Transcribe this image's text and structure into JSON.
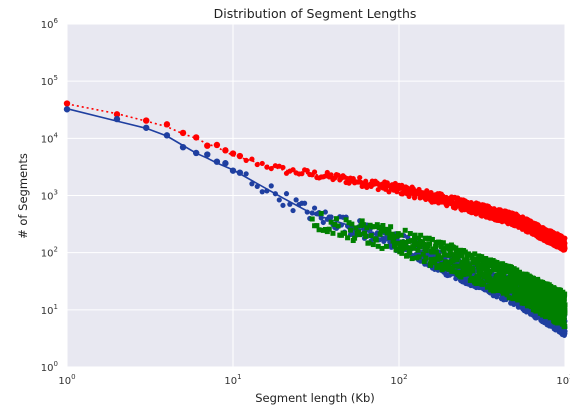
{
  "chart_data": {
    "type": "scatter",
    "title": "Distribution of Segment Lengths",
    "xlabel": "Segment length (Kb)",
    "ylabel": "# of Segments",
    "xscale": "log",
    "yscale": "log",
    "xlim": [
      1,
      1000
    ],
    "ylim": [
      1,
      1000000
    ],
    "grid": true,
    "background": "#e8e8f1",
    "x_ticks": [
      {
        "base": "10",
        "exp": "0"
      },
      {
        "base": "10",
        "exp": "1"
      },
      {
        "base": "10",
        "exp": "2"
      },
      {
        "base": "10",
        "exp": "3"
      }
    ],
    "y_ticks": [
      {
        "base": "10",
        "exp": "0"
      },
      {
        "base": "10",
        "exp": "1"
      },
      {
        "base": "10",
        "exp": "2"
      },
      {
        "base": "10",
        "exp": "3"
      },
      {
        "base": "10",
        "exp": "4"
      },
      {
        "base": "10",
        "exp": "5"
      },
      {
        "base": "10",
        "exp": "6"
      }
    ],
    "series": [
      {
        "color": "#ff0000",
        "line": "dotted",
        "marker": "circle",
        "x_range": [
          1,
          1000
        ],
        "points": [
          [
            1,
            40000
          ],
          [
            2,
            27000
          ],
          [
            3,
            20000
          ],
          [
            4,
            16000
          ],
          [
            5,
            12000
          ],
          [
            6,
            10000
          ],
          [
            7,
            8000
          ],
          [
            8,
            7000
          ],
          [
            10,
            5000
          ],
          [
            20,
            2800
          ],
          [
            50,
            1900
          ],
          [
            100,
            1300
          ],
          [
            200,
            800
          ],
          [
            500,
            380
          ],
          [
            1000,
            140
          ]
        ],
        "spread_decades": 0.07
      },
      {
        "color": "#1f3fa0",
        "line": "solid",
        "marker": "circle",
        "x_range": [
          1,
          1000
        ],
        "points": [
          [
            1,
            33000
          ],
          [
            2,
            20000
          ],
          [
            3,
            15000
          ],
          [
            4,
            11000
          ],
          [
            5,
            7500
          ],
          [
            6,
            5500
          ],
          [
            7,
            4500
          ],
          [
            8,
            3700
          ],
          [
            10,
            2800
          ],
          [
            20,
            900
          ],
          [
            30,
            480
          ],
          [
            50,
            300
          ],
          [
            100,
            150
          ],
          [
            200,
            60
          ],
          [
            500,
            20
          ],
          [
            1000,
            6
          ]
        ],
        "spread_decades": 0.14
      },
      {
        "color": "#008000",
        "line": "none",
        "marker": "square",
        "x_range": [
          30,
          1000
        ],
        "points": [
          [
            30,
            380
          ],
          [
            50,
            260
          ],
          [
            100,
            160
          ],
          [
            200,
            80
          ],
          [
            500,
            28
          ],
          [
            1000,
            10
          ]
        ],
        "spread_decades": 0.18
      }
    ]
  }
}
